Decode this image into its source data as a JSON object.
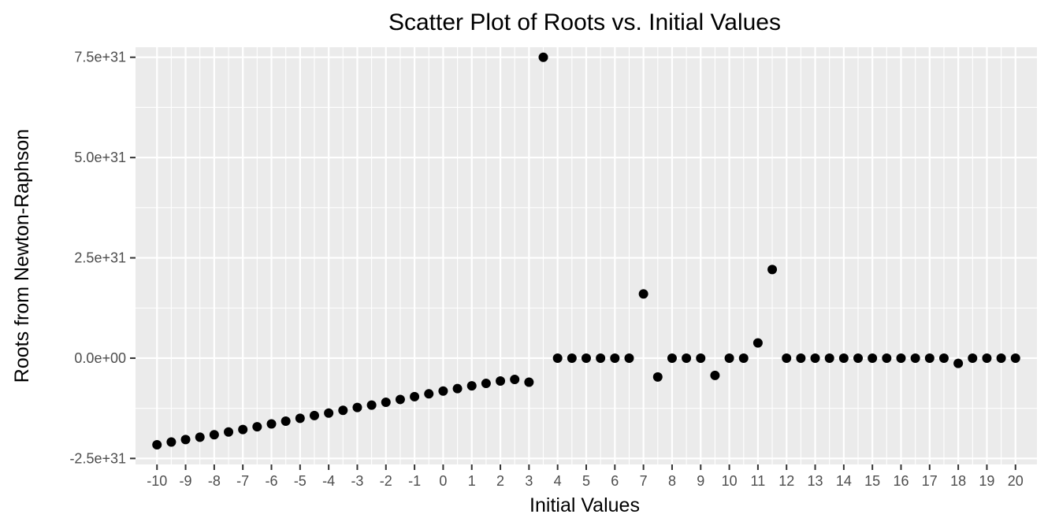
{
  "chart_data": {
    "type": "scatter",
    "title": "Scatter Plot of Roots vs. Initial Values",
    "xlabel": "Initial Values",
    "ylabel": "Roots from Newton-Raphson",
    "xlim": [
      -10.75,
      20.75
    ],
    "ylim": [
      -2.65e+31,
      7.75e+31
    ],
    "x_ticks": [
      -10,
      -9,
      -8,
      -7,
      -6,
      -5,
      -4,
      -3,
      -2,
      -1,
      0,
      1,
      2,
      3,
      4,
      5,
      6,
      7,
      8,
      9,
      10,
      11,
      12,
      13,
      14,
      15,
      16,
      17,
      18,
      19,
      20
    ],
    "x_tick_labels": [
      "-10",
      "-9",
      "-8",
      "-7",
      "-6",
      "-5",
      "-4",
      "-3",
      "-2",
      "-1",
      "0",
      "1",
      "2",
      "3",
      "4",
      "5",
      "6",
      "7",
      "8",
      "9",
      "10",
      "11",
      "12",
      "13",
      "14",
      "15",
      "16",
      "17",
      "18",
      "19",
      "20"
    ],
    "y_ticks": [
      -2.5e+31,
      0,
      2.5e+31,
      5e+31,
      7.5e+31
    ],
    "y_tick_labels": [
      "-2.5e+31",
      "0.0e+00",
      "2.5e+31",
      "5.0e+31",
      "7.5e+31"
    ],
    "grid": true,
    "legend": false,
    "point_color": "#000000",
    "panel_color": "#ebebeb",
    "points": [
      {
        "x": -10,
        "y": -2.16e+31
      },
      {
        "x": -9.5,
        "y": -2.09e+31
      },
      {
        "x": -9,
        "y": -2.03e+31
      },
      {
        "x": -8.5,
        "y": -1.97e+31
      },
      {
        "x": -8,
        "y": -1.91e+31
      },
      {
        "x": -7.5,
        "y": -1.84e+31
      },
      {
        "x": -7,
        "y": -1.78e+31
      },
      {
        "x": -6.5,
        "y": -1.71e+31
      },
      {
        "x": -6,
        "y": -1.64e+31
      },
      {
        "x": -5.5,
        "y": -1.57e+31
      },
      {
        "x": -5,
        "y": -1.5e+31
      },
      {
        "x": -4.5,
        "y": -1.43e+31
      },
      {
        "x": -4,
        "y": -1.37e+31
      },
      {
        "x": -3.5,
        "y": -1.3e+31
      },
      {
        "x": -3,
        "y": -1.23e+31
      },
      {
        "x": -2.5,
        "y": -1.17e+31
      },
      {
        "x": -2,
        "y": -1.1e+31
      },
      {
        "x": -1.5,
        "y": -1.03e+31
      },
      {
        "x": -1,
        "y": -9.6e+30
      },
      {
        "x": -0.5,
        "y": -8.9e+30
      },
      {
        "x": 0,
        "y": -8.2e+30
      },
      {
        "x": 0.5,
        "y": -7.6e+30
      },
      {
        "x": 1,
        "y": -6.9e+30
      },
      {
        "x": 1.5,
        "y": -6.3e+30
      },
      {
        "x": 2,
        "y": -5.7e+30
      },
      {
        "x": 2.5,
        "y": -5.3e+30
      },
      {
        "x": 3,
        "y": -6e+30
      },
      {
        "x": 3.5,
        "y": 7.5e+31
      },
      {
        "x": 4,
        "y": 0
      },
      {
        "x": 4.5,
        "y": 0
      },
      {
        "x": 5,
        "y": 0
      },
      {
        "x": 5.5,
        "y": 0
      },
      {
        "x": 6,
        "y": 0
      },
      {
        "x": 6.5,
        "y": 0
      },
      {
        "x": 7,
        "y": 1.6e+31
      },
      {
        "x": 7.5,
        "y": -4.7e+30
      },
      {
        "x": 8,
        "y": 0
      },
      {
        "x": 8.5,
        "y": 0
      },
      {
        "x": 9,
        "y": 0
      },
      {
        "x": 9.5,
        "y": -4.3e+30
      },
      {
        "x": 10,
        "y": 0
      },
      {
        "x": 10.5,
        "y": 0
      },
      {
        "x": 11,
        "y": 3.8e+30
      },
      {
        "x": 11.5,
        "y": 2.21e+31
      },
      {
        "x": 12,
        "y": 0
      },
      {
        "x": 12.5,
        "y": 0
      },
      {
        "x": 13,
        "y": 0
      },
      {
        "x": 13.5,
        "y": 0
      },
      {
        "x": 14,
        "y": 0
      },
      {
        "x": 14.5,
        "y": 0
      },
      {
        "x": 15,
        "y": 0
      },
      {
        "x": 15.5,
        "y": 0
      },
      {
        "x": 16,
        "y": 0
      },
      {
        "x": 16.5,
        "y": 0
      },
      {
        "x": 17,
        "y": 0
      },
      {
        "x": 17.5,
        "y": 0
      },
      {
        "x": 18,
        "y": -1.3e+30
      },
      {
        "x": 18.5,
        "y": 0
      },
      {
        "x": 19,
        "y": 0
      },
      {
        "x": 19.5,
        "y": 0
      },
      {
        "x": 20,
        "y": 0
      }
    ]
  }
}
